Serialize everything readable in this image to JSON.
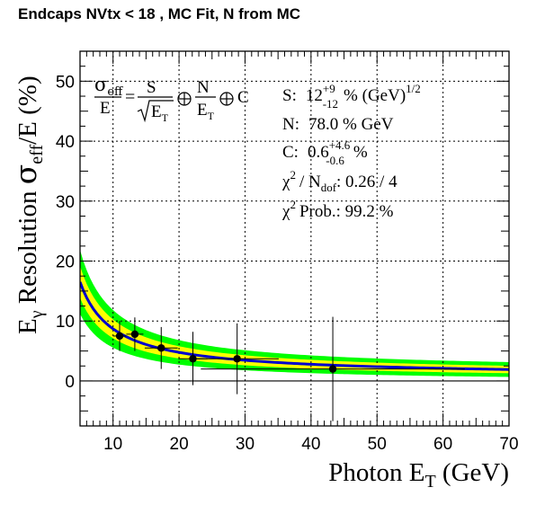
{
  "title": "Endcaps NVtx < 18 , MC Fit, N from MC",
  "chart_data": {
    "type": "scatter",
    "title": "Endcaps NVtx < 18 , MC Fit, N from MC",
    "xlabel": "Photon E_T (GeV)",
    "ylabel": "E_γ Resolution σ_eff/E (%)",
    "xlim": [
      5,
      70
    ],
    "ylim": [
      -7.5,
      55
    ],
    "xticks": [
      10,
      20,
      30,
      40,
      50,
      60,
      70
    ],
    "yticks": [
      0,
      10,
      20,
      30,
      40,
      50
    ],
    "grid": true,
    "fit_formula": "σ_eff/E = S/√E_T ⊕ N/E_T ⊕ C",
    "fit_params": {
      "S": {
        "label": "S:",
        "value": "12",
        "up": "+9",
        "down": "-12",
        "unit": "% (GeV)",
        "unit_sup": "1/2"
      },
      "N": {
        "label": "N:",
        "text": "78.0 % GeV"
      },
      "C": {
        "label": "C:",
        "value": "0.6",
        "up": "+4.6",
        "down": "-0.6",
        "unit": "%"
      },
      "chi2": {
        "label": "/ N",
        "sub": "dof",
        "text": ": 0.26 / 4"
      },
      "prob": {
        "label": "Prob.: 99.2 %"
      }
    },
    "points": [
      {
        "x": 11.0,
        "y": 7.5,
        "ex": 1.0,
        "eyl": 2.5,
        "eyh": 2.5
      },
      {
        "x": 13.3,
        "y": 7.8,
        "ex": 1.3,
        "eyl": 2.8,
        "eyh": 2.8
      },
      {
        "x": 17.3,
        "y": 5.5,
        "ex": 2.5,
        "eyl": 3.5,
        "eyh": 3.5
      },
      {
        "x": 22.1,
        "y": 3.7,
        "ex": 2.2,
        "eyl": 4.4,
        "eyh": 4.5
      },
      {
        "x": 28.8,
        "y": 3.7,
        "ex": 6.3,
        "eyl": 5.9,
        "eyh": 5.9
      },
      {
        "x": 43.3,
        "y": 2.0,
        "ex": 20.0,
        "eyl": 8.7,
        "eyh": 8.7
      }
    ],
    "series": [
      {
        "name": "fit",
        "color": "#0000cc"
      },
      {
        "name": "1σ band",
        "color": "#ffff00"
      },
      {
        "name": "2σ band",
        "color": "#00ff00"
      }
    ]
  }
}
